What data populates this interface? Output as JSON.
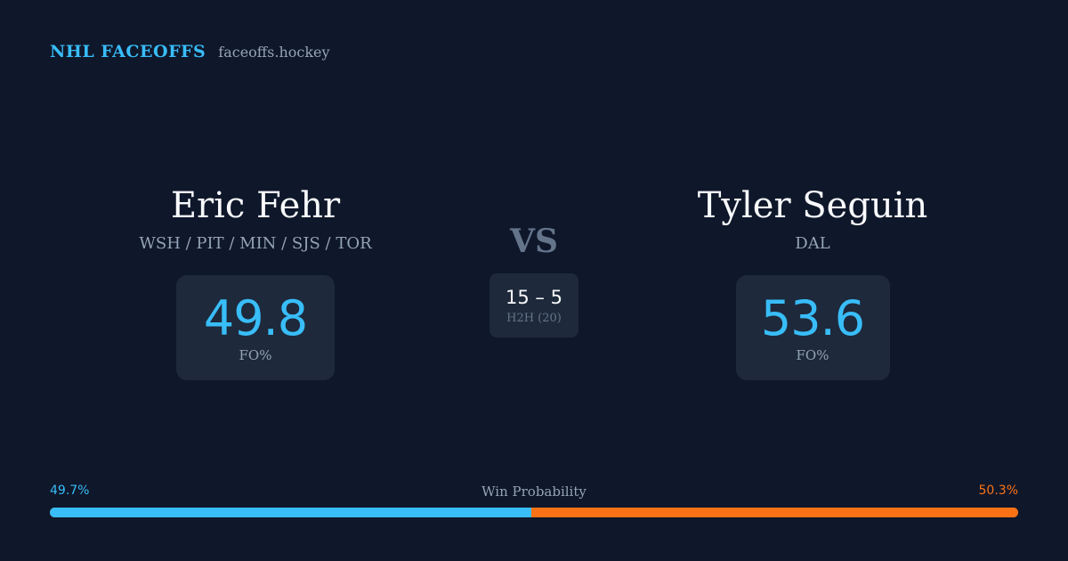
{
  "brand": {
    "title": "NHL FACEOFFS",
    "url": "faceoffs.hockey"
  },
  "players": [
    {
      "name": "Eric Fehr",
      "teams": "WSH / PIT / MIN / SJS / TOR",
      "fo_pct": "49.8",
      "fo_label": "FO%"
    },
    {
      "name": "Tyler Seguin",
      "teams": "DAL",
      "fo_pct": "53.6",
      "fo_label": "FO%"
    }
  ],
  "vs": "VS",
  "h2h": {
    "score": "15 – 5",
    "label": "H2H (20)"
  },
  "win_probability": {
    "label": "Win Probability",
    "left_text": "49.7%",
    "right_text": "50.3%",
    "left_fraction": 0.497,
    "right_fraction": 0.503
  },
  "colors": {
    "background": "#0f172a",
    "accent_left": "#38bdf8",
    "accent_right": "#f97316",
    "card": "#1e293b"
  }
}
